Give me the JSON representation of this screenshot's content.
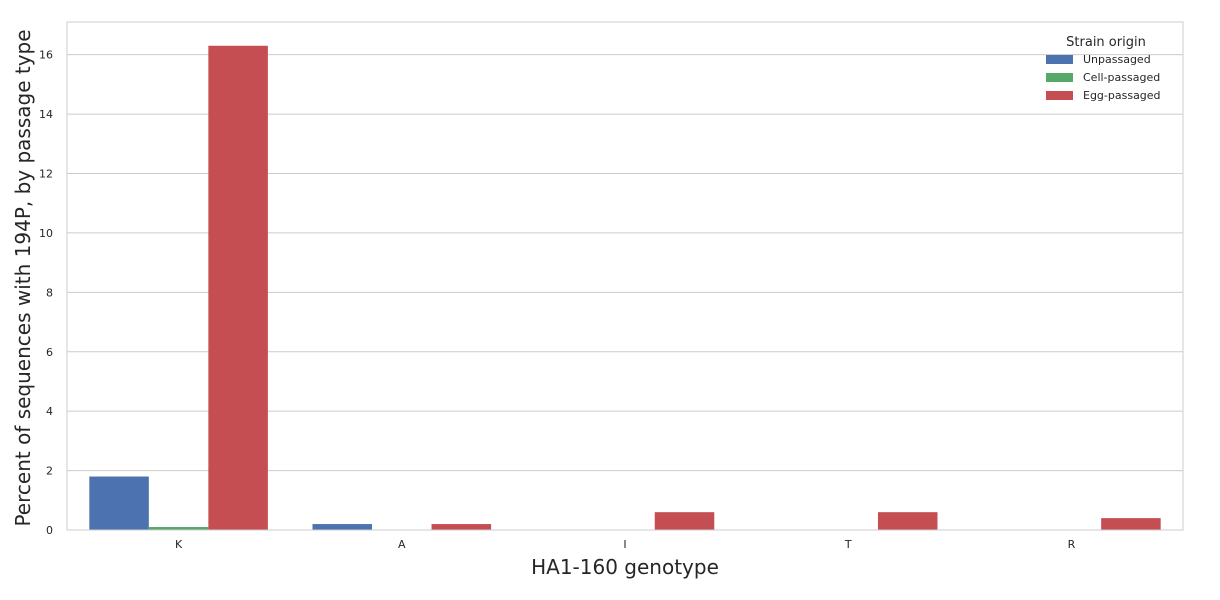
{
  "chart_data": {
    "type": "bar",
    "title": "",
    "xlabel": "HA1-160 genotype",
    "ylabel": "Percent of sequences with 194P, by passage type",
    "categories": [
      "K",
      "A",
      "I",
      "T",
      "R"
    ],
    "ylim": [
      0,
      17.1
    ],
    "yticks": [
      0,
      2,
      4,
      6,
      8,
      10,
      12,
      14,
      16
    ],
    "grid": "horizontal",
    "legend": {
      "title": "Strain origin",
      "placement": "top-right"
    },
    "series": [
      {
        "name": "Unpassaged",
        "color": "#4c72b0",
        "values": [
          1.8,
          0.2,
          0,
          0,
          0
        ]
      },
      {
        "name": "Cell-passaged",
        "color": "#55a868",
        "values": [
          0.1,
          0,
          0,
          0,
          0
        ]
      },
      {
        "name": "Egg-passaged",
        "color": "#c44e52",
        "values": [
          16.3,
          0.2,
          0.6,
          0.6,
          0.4
        ]
      }
    ]
  }
}
